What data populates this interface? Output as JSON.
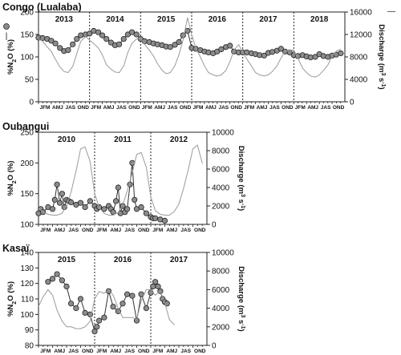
{
  "chart_data": [
    {
      "type": "line",
      "title": "Congo (Lualaba)",
      "ylabel": "%N2O (%)",
      "y2label": "Discharge (m3 s-1)",
      "ylim": [
        0,
        200
      ],
      "y2lim": [
        0,
        16000
      ],
      "yticks": [
        "0",
        "50",
        "100",
        "150",
        "200"
      ],
      "y2ticks": [
        "0",
        "4000",
        "8000",
        "12000",
        "16000"
      ],
      "years": [
        "2013",
        "2014",
        "2015",
        "2016",
        "2017",
        "2018"
      ],
      "month_labels": [
        "JFM",
        "AMJ",
        "JAS",
        "OND"
      ],
      "legend": [
        "○",
        "|",
        "—"
      ],
      "series": [
        {
          "name": "%N2O",
          "marker": "circle",
          "x": [
            2013.0,
            2013.08,
            2013.17,
            2013.25,
            2013.33,
            2013.42,
            2013.5,
            2013.58,
            2013.67,
            2013.75,
            2013.83,
            2013.92,
            2014.0,
            2014.08,
            2014.17,
            2014.25,
            2014.33,
            2014.42,
            2014.5,
            2014.58,
            2014.67,
            2014.75,
            2014.83,
            2014.92,
            2015.0,
            2015.08,
            2015.17,
            2015.25,
            2015.33,
            2015.42,
            2015.5,
            2015.58,
            2015.67,
            2015.75,
            2015.83,
            2015.92,
            2016.0,
            2016.08,
            2016.17,
            2016.25,
            2016.33,
            2016.42,
            2016.5,
            2016.58,
            2016.67,
            2016.75,
            2016.83,
            2016.92,
            2017.0,
            2017.08,
            2017.17,
            2017.25,
            2017.33,
            2017.42,
            2017.5,
            2017.58,
            2017.67,
            2017.75,
            2017.83,
            2017.92,
            2018.0,
            2018.08,
            2018.17,
            2018.25,
            2018.33,
            2018.42,
            2018.5,
            2018.58,
            2018.67,
            2018.75,
            2018.83,
            2018.92
          ],
          "values": [
            143,
            142,
            140,
            136,
            130,
            120,
            113,
            115,
            128,
            140,
            148,
            150,
            152,
            158,
            155,
            148,
            140,
            132,
            126,
            128,
            140,
            150,
            155,
            150,
            140,
            135,
            133,
            130,
            128,
            126,
            123,
            122,
            127,
            133,
            148,
            158,
            120,
            118,
            115,
            112,
            110,
            108,
            112,
            117,
            122,
            125,
            112,
            110,
            110,
            110,
            108,
            106,
            104,
            103,
            109,
            111,
            114,
            118,
            112,
            110,
            104,
            102,
            104,
            101,
            99,
            100,
            106,
            102,
            100,
            103,
            105,
            108
          ]
        },
        {
          "name": "Discharge",
          "axis": "right",
          "x": [
            2013.0,
            2013.08,
            2013.17,
            2013.25,
            2013.33,
            2013.42,
            2013.5,
            2013.58,
            2013.67,
            2013.75,
            2013.83,
            2013.92,
            2014.0,
            2014.08,
            2014.17,
            2014.25,
            2014.33,
            2014.42,
            2014.5,
            2014.58,
            2014.67,
            2014.75,
            2014.83,
            2014.92,
            2015.0,
            2015.08,
            2015.17,
            2015.25,
            2015.33,
            2015.42,
            2015.5,
            2015.58,
            2015.67,
            2015.75,
            2015.83,
            2015.92,
            2016.0,
            2016.08,
            2016.17,
            2016.25,
            2016.33,
            2016.42,
            2016.5,
            2016.58,
            2016.67,
            2016.75,
            2016.83,
            2016.92,
            2017.0,
            2017.08,
            2017.17,
            2017.25,
            2017.33,
            2017.42,
            2017.5,
            2017.58,
            2017.67,
            2017.75,
            2017.83,
            2017.92,
            2018.0,
            2018.08,
            2018.17,
            2018.25,
            2018.33,
            2018.42,
            2018.5,
            2018.58,
            2018.67,
            2018.75,
            2018.83,
            2018.92
          ],
          "values": [
            11200,
            10800,
            9800,
            9000,
            7600,
            6200,
            5400,
            5200,
            6300,
            8600,
            10800,
            11600,
            11000,
            10400,
            9600,
            8400,
            6600,
            5800,
            5300,
            5200,
            6400,
            8800,
            10400,
            11200,
            11400,
            10200,
            9200,
            8200,
            6800,
            5600,
            5000,
            5200,
            6400,
            8400,
            11000,
            15000,
            12000,
            9600,
            8000,
            6400,
            5200,
            4800,
            4600,
            4800,
            5600,
            7200,
            9200,
            10200,
            8800,
            7600,
            6400,
            5200,
            4800,
            4600,
            4800,
            5400,
            6400,
            7800,
            9000,
            9200,
            9200,
            7800,
            6000,
            5200,
            4600,
            4400,
            4800,
            5600,
            6600,
            8200,
            9000,
            9400
          ]
        }
      ]
    },
    {
      "type": "line",
      "title": "Oubangui",
      "ylabel": "%N2O (%)",
      "y2label": "Discharge (m3 s-1)",
      "ylim": [
        100,
        250
      ],
      "y2lim": [
        0,
        10000
      ],
      "yticks": [
        "100",
        "150",
        "200",
        "250"
      ],
      "y2ticks": [
        "0",
        "2000",
        "4000",
        "6000",
        "8000",
        "10000"
      ],
      "years": [
        "2010",
        "2011",
        "2012"
      ],
      "month_labels": [
        "JFM",
        "AMJ",
        "JAS",
        "OND"
      ],
      "series": [
        {
          "name": "%N2O",
          "marker": "circle",
          "x": [
            2010.0,
            2010.04,
            2010.08,
            2010.17,
            2010.25,
            2010.29,
            2010.33,
            2010.38,
            2010.42,
            2010.46,
            2010.5,
            2010.54,
            2010.58,
            2010.67,
            2010.75,
            2010.83,
            2010.92,
            2011.0,
            2011.04,
            2011.08,
            2011.17,
            2011.25,
            2011.29,
            2011.33,
            2011.38,
            2011.42,
            2011.46,
            2011.5,
            2011.54,
            2011.58,
            2011.63,
            2011.67,
            2011.71,
            2011.75,
            2011.83,
            2011.92,
            2012.0,
            2012.04,
            2012.08,
            2012.17,
            2012.25
          ],
          "values": [
            118,
            125,
            120,
            128,
            125,
            140,
            165,
            135,
            150,
            128,
            140,
            138,
            136,
            132,
            135,
            128,
            138,
            130,
            125,
            128,
            125,
            130,
            125,
            120,
            138,
            160,
            118,
            130,
            120,
            125,
            165,
            200,
            140,
            125,
            128,
            118,
            112,
            110,
            110,
            108,
            106
          ]
        },
        {
          "name": "Discharge",
          "axis": "right",
          "x": [
            2010.0,
            2010.08,
            2010.17,
            2010.25,
            2010.33,
            2010.42,
            2010.5,
            2010.58,
            2010.67,
            2010.75,
            2010.83,
            2010.92,
            2011.0,
            2011.08,
            2011.17,
            2011.25,
            2011.33,
            2011.42,
            2011.5,
            2011.58,
            2011.67,
            2011.75,
            2011.83,
            2011.92,
            2012.0,
            2012.08,
            2012.17,
            2012.25,
            2012.33,
            2012.42,
            2012.5,
            2012.58,
            2012.67,
            2012.75,
            2012.83,
            2012.92
          ],
          "values": [
            1800,
            1300,
            1100,
            1000,
            1000,
            1200,
            2000,
            3500,
            5800,
            8200,
            8400,
            6800,
            3400,
            1800,
            1200,
            1000,
            1000,
            1300,
            2100,
            3600,
            5600,
            7600,
            7800,
            6200,
            3000,
            1500,
            1100,
            1000,
            1000,
            1400,
            2200,
            3800,
            6000,
            8200,
            8600,
            6600
          ]
        }
      ]
    },
    {
      "type": "line",
      "title": "Kasaï",
      "ylabel": "%N2O (%)",
      "y2label": "Discharge (m3 s-1)",
      "ylim": [
        80,
        140
      ],
      "y2lim": [
        0,
        10000
      ],
      "yticks": [
        "80",
        "90",
        "100",
        "110",
        "120",
        "130",
        "140"
      ],
      "y2ticks": [
        "0",
        "2000",
        "4000",
        "6000",
        "8000",
        "10000"
      ],
      "years": [
        "2015",
        "2016",
        "2017"
      ],
      "month_labels": [
        "JFM",
        "AMJ",
        "JAS",
        "OND"
      ],
      "series": [
        {
          "name": "%N2O",
          "marker": "circle",
          "x": [
            2015.17,
            2015.25,
            2015.33,
            2015.42,
            2015.5,
            2015.58,
            2015.67,
            2015.75,
            2015.83,
            2015.92,
            2016.0,
            2016.04,
            2016.08,
            2016.17,
            2016.25,
            2016.33,
            2016.42,
            2016.5,
            2016.58,
            2016.67,
            2016.75,
            2016.83,
            2016.92,
            2017.0,
            2017.04,
            2017.08,
            2017.13,
            2017.17,
            2017.21,
            2017.25,
            2017.29
          ],
          "values": [
            121,
            123,
            126,
            122,
            118,
            107,
            104,
            110,
            101,
            100,
            89,
            92,
            96,
            98,
            115,
            105,
            102,
            107,
            113,
            112,
            96,
            113,
            104,
            114,
            118,
            121,
            118,
            115,
            110,
            108,
            107
          ]
        },
        {
          "name": "Discharge",
          "axis": "right",
          "x": [
            2015.0,
            2015.08,
            2015.17,
            2015.25,
            2015.33,
            2015.42,
            2015.5,
            2015.58,
            2015.67,
            2015.75,
            2015.83,
            2015.92,
            2016.0,
            2016.08,
            2016.17,
            2016.25,
            2016.33,
            2016.42,
            2016.5,
            2016.58,
            2016.67,
            2016.75,
            2016.83,
            2016.92,
            2017.0,
            2017.08,
            2017.17,
            2017.25,
            2017.33,
            2017.42
          ],
          "values": [
            4200,
            5200,
            6000,
            5400,
            3800,
            2600,
            2000,
            2000,
            1800,
            1800,
            2000,
            2600,
            5000,
            5800,
            5600,
            6000,
            5400,
            4000,
            3000,
            3000,
            3000,
            2800,
            4800,
            6000,
            6000,
            5400,
            5800,
            4600,
            2800,
            2200
          ]
        }
      ]
    }
  ]
}
